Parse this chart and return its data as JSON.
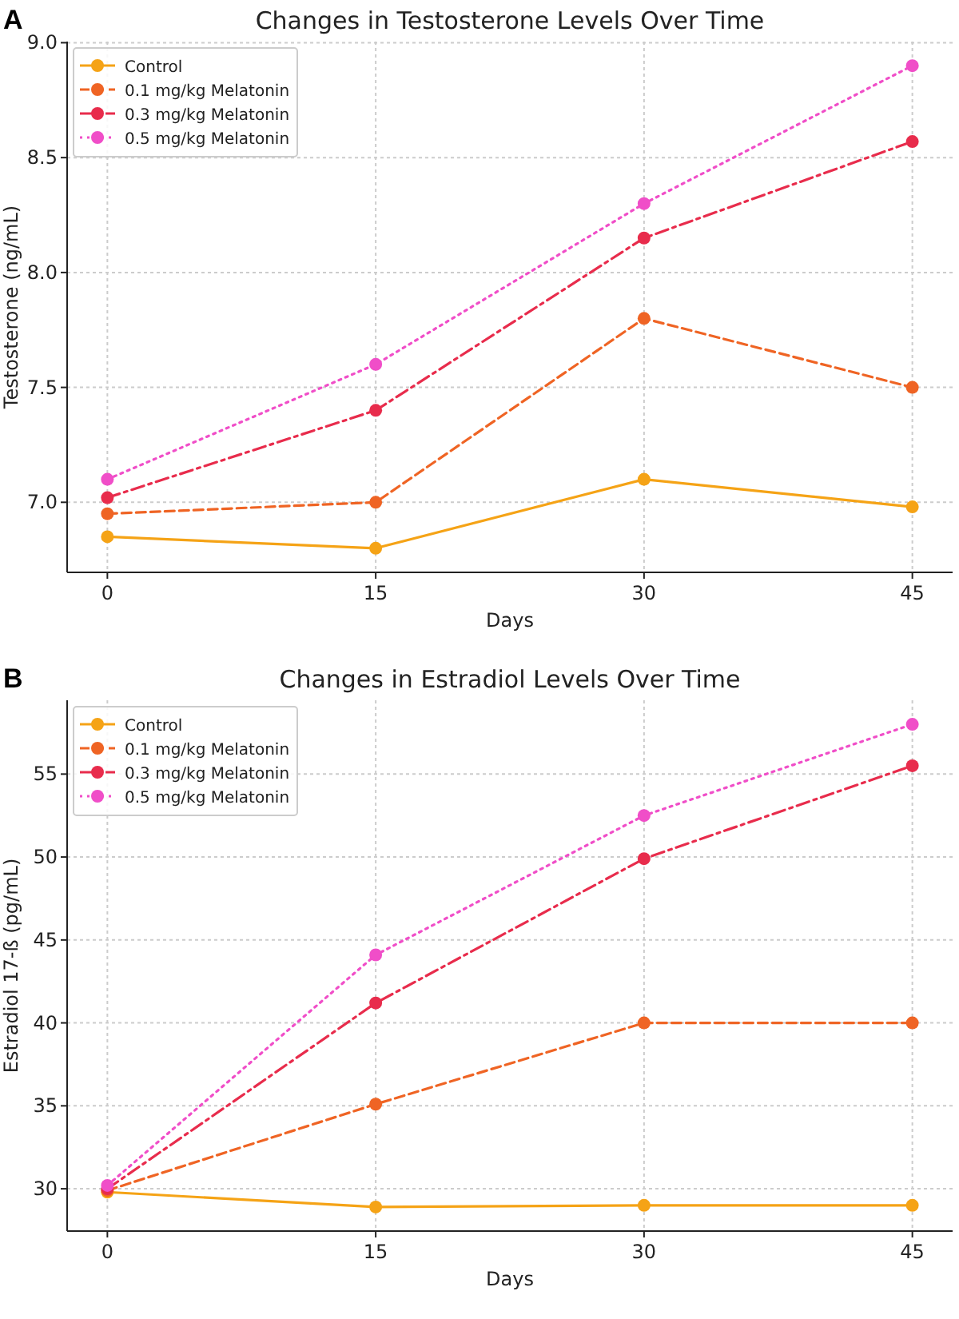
{
  "chart_data": [
    {
      "type": "line",
      "title": "Changes in Testosterone Levels Over Time",
      "xlabel": "Days",
      "ylabel": "Testosterone (ng/mL)",
      "annotations": [
        "A"
      ],
      "x": [
        0,
        15,
        30,
        45
      ],
      "xlim": [
        -2.25,
        47.25
      ],
      "xticks": [
        0,
        15,
        30,
        45
      ],
      "ylim": [
        6.695,
        9.005
      ],
      "yticks": [
        {
          "value": 7,
          "label": "7.0"
        },
        7.5,
        {
          "value": 8,
          "label": "8.0"
        },
        8.5,
        {
          "value": 9,
          "label": "9.0"
        }
      ],
      "grid": true,
      "legend": "top left",
      "marker": "circle",
      "series": [
        {
          "name": "Control",
          "color": "#f5a316",
          "line_style": "solid",
          "values": [
            6.85,
            6.8,
            7.1,
            6.98
          ]
        },
        {
          "name": "0.1 mg/kg Melatonin",
          "color": "#ef6424",
          "line_style": "dashed",
          "values": [
            6.95,
            7.0,
            7.8,
            7.5
          ]
        },
        {
          "name": "0.3 mg/kg Melatonin",
          "color": "#e82c4c",
          "line_style": "dashdot",
          "values": [
            7.02,
            7.4,
            8.15,
            8.57
          ]
        },
        {
          "name": "0.5 mg/kg Melatonin",
          "color": "#f04ec8",
          "line_style": "dotted",
          "values": [
            7.1,
            7.6,
            8.3,
            8.9
          ]
        }
      ]
    },
    {
      "type": "line",
      "title": "Changes in Estradiol Levels Over Time",
      "xlabel": "Days",
      "ylabel": "Estradiol 17-ß (pg/mL)",
      "annotations": [
        "B"
      ],
      "x": [
        0,
        15,
        30,
        45
      ],
      "xlim": [
        -2.25,
        47.25
      ],
      "xticks": [
        0,
        15,
        30,
        45
      ],
      "ylim": [
        27.45,
        59.45
      ],
      "yticks": [
        30,
        35,
        40,
        45,
        50,
        55
      ],
      "grid": true,
      "legend": "top left",
      "marker": "circle",
      "series": [
        {
          "name": "Control",
          "color": "#f5a316",
          "line_style": "solid",
          "values": [
            29.8,
            28.9,
            29.0,
            29.0
          ]
        },
        {
          "name": "0.1 mg/kg Melatonin",
          "color": "#ef6424",
          "line_style": "dashed",
          "values": [
            29.9,
            35.1,
            40.0,
            40.0
          ]
        },
        {
          "name": "0.3 mg/kg Melatonin",
          "color": "#e82c4c",
          "line_style": "dashdot",
          "values": [
            30.0,
            41.2,
            49.9,
            55.5
          ]
        },
        {
          "name": "0.5 mg/kg Melatonin",
          "color": "#f04ec8",
          "line_style": "dotted",
          "values": [
            30.2,
            44.1,
            52.5,
            58.0
          ]
        }
      ]
    }
  ]
}
